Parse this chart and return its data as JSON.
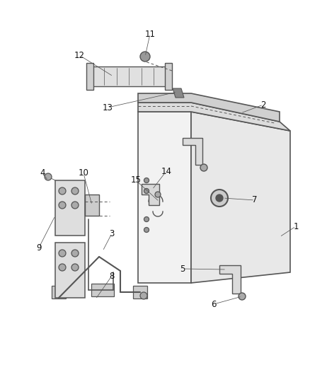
{
  "bg_color": "#ffffff",
  "line_color": "#555555",
  "label_color": "#111111",
  "label_fontsize": 8.5,
  "fig_width": 4.38,
  "fig_height": 5.33,
  "dpi": 100
}
